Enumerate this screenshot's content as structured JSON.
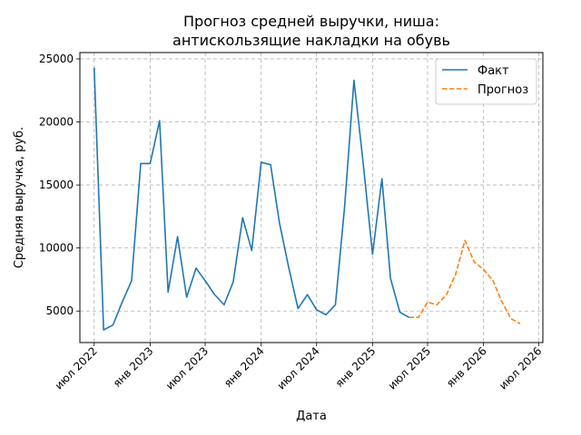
{
  "chart_data": {
    "type": "line",
    "title_lines": [
      "Прогноз средней выручки, ниша:",
      "антискользящие накладки на обувь"
    ],
    "xlabel": "Дата",
    "ylabel": "Средняя выручка, руб.",
    "ylim": [
      2500,
      25500
    ],
    "xlim": [
      "2022-05-15",
      "2026-07-15"
    ],
    "grid": true,
    "legend_position": "top-right",
    "y_ticks": [
      5000,
      10000,
      15000,
      20000,
      25000
    ],
    "x_ticks": [
      {
        "date": "2022-07-01",
        "label": "июл 2022"
      },
      {
        "date": "2023-01-01",
        "label": "янв 2023"
      },
      {
        "date": "2023-07-01",
        "label": "июл 2023"
      },
      {
        "date": "2024-01-01",
        "label": "янв 2024"
      },
      {
        "date": "2024-07-01",
        "label": "июл 2024"
      },
      {
        "date": "2025-01-01",
        "label": "янв 2025"
      },
      {
        "date": "2025-07-01",
        "label": "июл 2025"
      },
      {
        "date": "2026-01-01",
        "label": "янв 2026"
      },
      {
        "date": "2026-07-01",
        "label": "июл 2026"
      }
    ],
    "series": [
      {
        "name": "Факт",
        "color": "#1f77b4",
        "style": "solid",
        "points": [
          [
            "2022-07-01",
            24300
          ],
          [
            "2022-08-01",
            3500
          ],
          [
            "2022-09-01",
            3900
          ],
          [
            "2022-10-01",
            5700
          ],
          [
            "2022-11-01",
            7400
          ],
          [
            "2022-12-01",
            16700
          ],
          [
            "2023-01-01",
            16700
          ],
          [
            "2023-02-01",
            20100
          ],
          [
            "2023-03-01",
            6500
          ],
          [
            "2023-04-01",
            10900
          ],
          [
            "2023-05-01",
            6100
          ],
          [
            "2023-06-01",
            8400
          ],
          [
            "2023-07-01",
            7400
          ],
          [
            "2023-08-01",
            6300
          ],
          [
            "2023-09-01",
            5500
          ],
          [
            "2023-10-01",
            7300
          ],
          [
            "2023-11-01",
            12400
          ],
          [
            "2023-12-01",
            9800
          ],
          [
            "2024-01-01",
            16800
          ],
          [
            "2024-02-01",
            16600
          ],
          [
            "2024-03-01",
            12000
          ],
          [
            "2024-04-01",
            8400
          ],
          [
            "2024-05-01",
            5200
          ],
          [
            "2024-06-01",
            6300
          ],
          [
            "2024-07-01",
            5100
          ],
          [
            "2024-08-01",
            4700
          ],
          [
            "2024-09-01",
            5500
          ],
          [
            "2024-10-01",
            13200
          ],
          [
            "2024-11-01",
            23300
          ],
          [
            "2024-12-01",
            16800
          ],
          [
            "2025-01-01",
            9500
          ],
          [
            "2025-02-01",
            15500
          ],
          [
            "2025-03-01",
            7600
          ],
          [
            "2025-04-01",
            4900
          ],
          [
            "2025-05-01",
            4500
          ]
        ]
      },
      {
        "name": "Прогноз",
        "color": "#ff7f0e",
        "style": "dashed",
        "points": [
          [
            "2025-05-01",
            4500
          ],
          [
            "2025-06-01",
            4500
          ],
          [
            "2025-07-01",
            5700
          ],
          [
            "2025-08-01",
            5500
          ],
          [
            "2025-09-01",
            6300
          ],
          [
            "2025-10-01",
            7900
          ],
          [
            "2025-11-01",
            10600
          ],
          [
            "2025-12-01",
            8900
          ],
          [
            "2026-01-01",
            8300
          ],
          [
            "2026-02-01",
            7400
          ],
          [
            "2026-03-01",
            5800
          ],
          [
            "2026-04-01",
            4400
          ],
          [
            "2026-05-01",
            4000
          ]
        ]
      }
    ]
  }
}
